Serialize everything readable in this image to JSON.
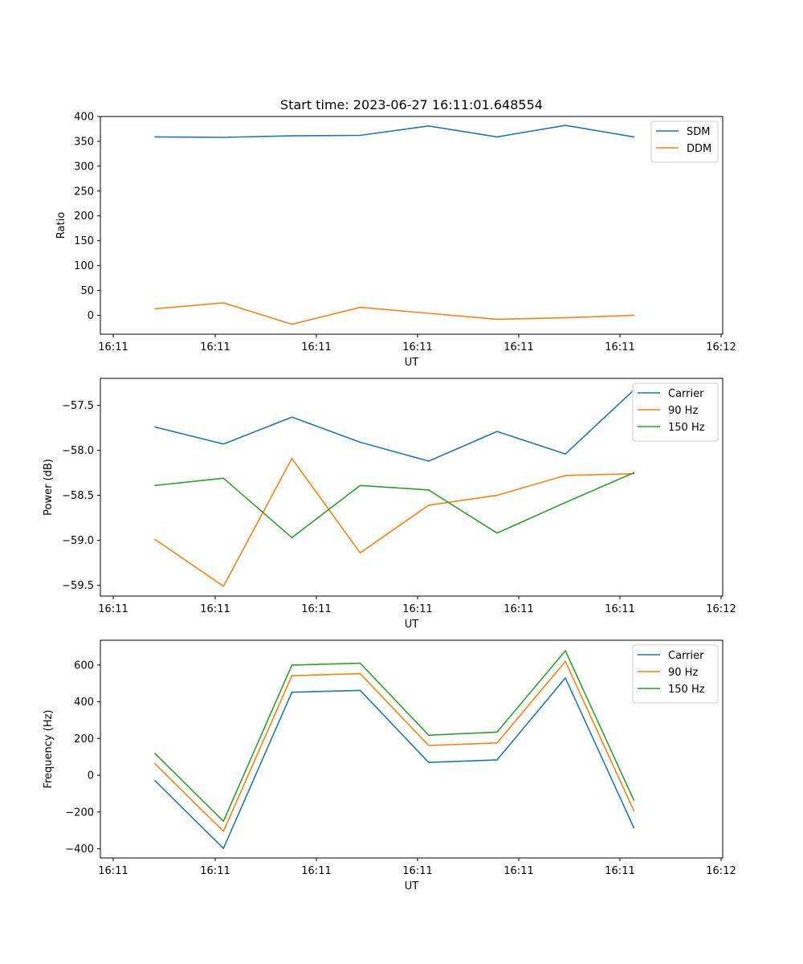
{
  "figure": {
    "title": "Start time: 2023-06-27 16:11:01.648554"
  },
  "chart_data": [
    {
      "type": "line",
      "xlabel": "UT",
      "ylabel": "Ratio",
      "x_tick_labels": [
        "16:11",
        "16:11",
        "16:11",
        "16:11",
        "16:11",
        "16:11",
        "16:12"
      ],
      "x": [
        1,
        2,
        3,
        4,
        5,
        6,
        7,
        8
      ],
      "xlim": [
        0.2,
        9.3
      ],
      "ylim": [
        -38,
        400
      ],
      "yticks": [
        0,
        50,
        100,
        150,
        200,
        250,
        300,
        350,
        400
      ],
      "legend": "top-right",
      "series": [
        {
          "name": "SDM",
          "color": "#1f77b4",
          "values": [
            359,
            358,
            361,
            362,
            381,
            359,
            382,
            359
          ]
        },
        {
          "name": "DDM",
          "color": "#ff7f0e",
          "values": [
            13,
            25,
            -18,
            16,
            4,
            -8,
            -5,
            0
          ]
        }
      ]
    },
    {
      "type": "line",
      "xlabel": "UT",
      "ylabel": "Power (dB)",
      "x_tick_labels": [
        "16:11",
        "16:11",
        "16:11",
        "16:11",
        "16:11",
        "16:11",
        "16:12"
      ],
      "x": [
        1,
        2,
        3,
        4,
        5,
        6,
        7,
        8
      ],
      "xlim": [
        0.2,
        9.3
      ],
      "ylim": [
        -59.62,
        -57.2
      ],
      "yticks": [
        -59.5,
        -59.0,
        -58.5,
        -58.0,
        -57.5
      ],
      "ytick_labels": [
        "−59.5",
        "−59.0",
        "−58.5",
        "−58.0",
        "−57.5"
      ],
      "legend": "top-right",
      "series": [
        {
          "name": "Carrier",
          "color": "#1f77b4",
          "values": [
            -57.74,
            -57.93,
            -57.63,
            -57.91,
            -58.12,
            -57.79,
            -58.04,
            -57.33
          ]
        },
        {
          "name": "90 Hz",
          "color": "#ff7f0e",
          "values": [
            -58.99,
            -59.51,
            -58.09,
            -59.14,
            -58.61,
            -58.5,
            -58.28,
            -58.26
          ]
        },
        {
          "name": "150 Hz",
          "color": "#2ca02c",
          "values": [
            -58.39,
            -58.31,
            -58.97,
            -58.39,
            -58.44,
            -58.92,
            -58.58,
            -58.25
          ]
        }
      ]
    },
    {
      "type": "line",
      "xlabel": "UT",
      "ylabel": "Frequency (Hz)",
      "x_tick_labels": [
        "16:11",
        "16:11",
        "16:11",
        "16:11",
        "16:11",
        "16:11",
        "16:12"
      ],
      "x": [
        1,
        2,
        3,
        4,
        5,
        6,
        7,
        8
      ],
      "xlim": [
        0.2,
        9.3
      ],
      "ylim": [
        -450,
        735
      ],
      "yticks": [
        -400,
        -200,
        0,
        200,
        400,
        600
      ],
      "ytick_labels": [
        "−400",
        "−200",
        "0",
        "200",
        "400",
        "600"
      ],
      "legend": "top-right",
      "series": [
        {
          "name": "Carrier",
          "color": "#1f77b4",
          "values": [
            -30,
            -398,
            452,
            462,
            70,
            84,
            530,
            -285
          ]
        },
        {
          "name": "90 Hz",
          "color": "#ff7f0e",
          "values": [
            62,
            -305,
            542,
            553,
            162,
            176,
            620,
            -192
          ]
        },
        {
          "name": "150 Hz",
          "color": "#2ca02c",
          "values": [
            118,
            -250,
            600,
            610,
            218,
            235,
            678,
            -135
          ]
        }
      ]
    }
  ]
}
